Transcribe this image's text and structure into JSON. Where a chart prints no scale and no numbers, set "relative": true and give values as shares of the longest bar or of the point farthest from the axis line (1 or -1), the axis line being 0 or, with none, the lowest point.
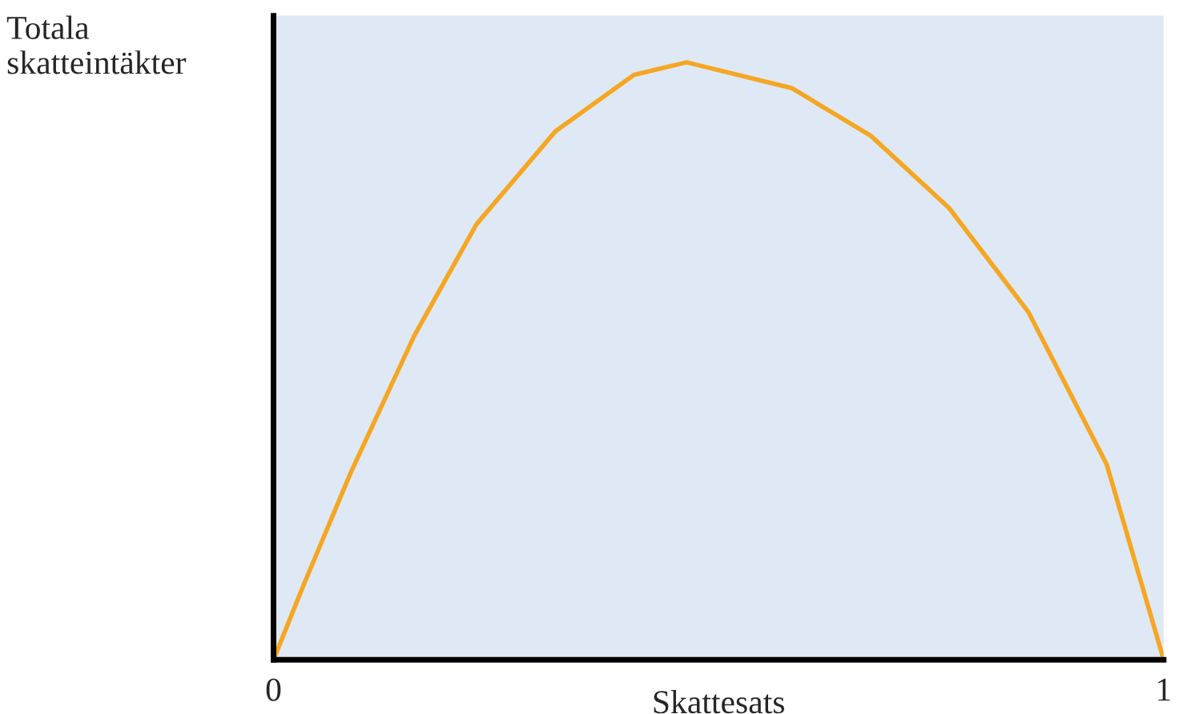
{
  "chart_data": {
    "type": "line",
    "xlabel": "Skattesats",
    "ylabel": "Totala\nskatteintäkter",
    "relative": true,
    "xlim": [
      0,
      1
    ],
    "xticks": [
      0,
      1
    ],
    "grid": false,
    "legend": false,
    "marker": "none",
    "line_style": "solid",
    "series": [
      {
        "color": "#f5a623",
        "x": [
          0,
          0.034,
          0.087,
          0.158,
          0.228,
          0.317,
          0.405,
          0.464,
          0.582,
          0.671,
          0.759,
          0.848,
          0.936,
          1.0
        ],
        "values": [
          0,
          0.126,
          0.314,
          0.542,
          0.729,
          0.885,
          0.979,
          1,
          0.957,
          0.877,
          0.756,
          0.582,
          0.327,
          0
        ]
      }
    ]
  }
}
